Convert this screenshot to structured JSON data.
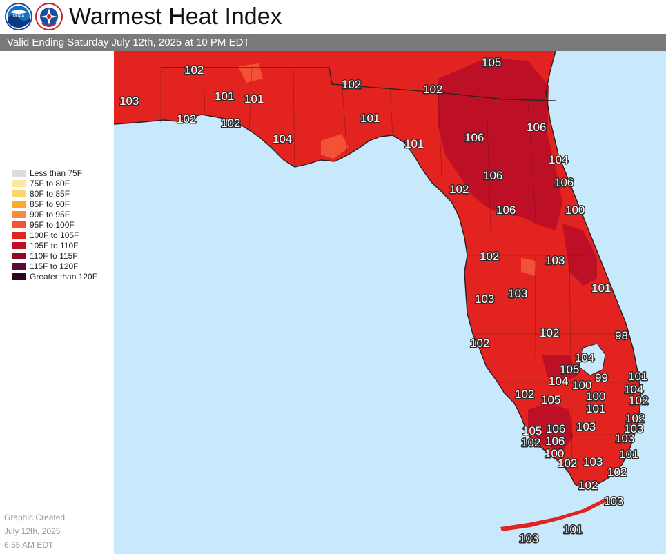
{
  "header": {
    "title": "Warmest Heat Index",
    "valid": "Valid Ending Saturday July 12th, 2025 at 10 PM EDT"
  },
  "logos": {
    "noaa_text": "NOAA",
    "nws_text": "NATIONAL WEATHER SERVICE"
  },
  "legend": {
    "items": [
      {
        "label": "Less than 75F",
        "color": "#dcdcdc"
      },
      {
        "label": "75F to 80F",
        "color": "#fbe6a2"
      },
      {
        "label": "80F to 85F",
        "color": "#fdd56a"
      },
      {
        "label": "85F to 90F",
        "color": "#fdaa2e"
      },
      {
        "label": "90F to 95F",
        "color": "#fb8a3c"
      },
      {
        "label": "95F to 100F",
        "color": "#f45236"
      },
      {
        "label": "100F to 105F",
        "color": "#e2231f"
      },
      {
        "label": "105F to 110F",
        "color": "#bd0f25"
      },
      {
        "label": "110F to 115F",
        "color": "#8c0a26"
      },
      {
        "label": "115F to 120F",
        "color": "#5a0a3a"
      },
      {
        "label": "Greater than 120F",
        "color": "#2a0420"
      }
    ]
  },
  "created": {
    "line1": "Graphic Created",
    "line2": "July 12th, 2025",
    "line3": "6:55 AM EDT"
  },
  "map": {
    "colors": {
      "water": "#c8e8fc",
      "base": "#e2231f",
      "hot": "#bd0f25",
      "warm": "#f45236",
      "border": "#222222"
    },
    "values": [
      "102",
      "105",
      "103",
      "102",
      "101",
      "101",
      "102",
      "102",
      "102",
      "101",
      "104",
      "101",
      "106",
      "106",
      "104",
      "102",
      "106",
      "106",
      "100",
      "106",
      "102",
      "103",
      "101",
      "103",
      "103",
      "102",
      "98",
      "102",
      "104",
      "105",
      "104",
      "100",
      "99",
      "101",
      "102",
      "105",
      "100",
      "104",
      "101",
      "102",
      "102",
      "103",
      "105",
      "106",
      "103",
      "103",
      "102",
      "106",
      "100",
      "101",
      "102",
      "103",
      "102",
      "102",
      "103",
      "103",
      "101"
    ]
  }
}
